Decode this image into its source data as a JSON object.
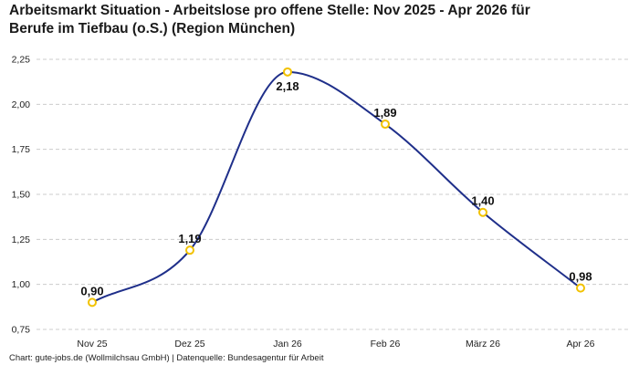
{
  "title_line1": "Arbeitsmarkt Situation - Arbeitslose pro offene Stelle: Nov 2025 - Apr 2026 für",
  "title_line2": "Berufe im Tiefbau (o.S.) (Region München)",
  "source": "Chart: gute-jobs.de (Wollmilchsau GmbH) | Datenquelle: Bundesagentur für Arbeit",
  "colors": {
    "line": "#1f2f8a",
    "marker": "#f2c200",
    "grid": "#cccccc"
  },
  "chart_data": {
    "type": "line",
    "categories": [
      "Nov 25",
      "Dez 25",
      "Jan 26",
      "Feb 26",
      "März 26",
      "Apr 26"
    ],
    "values": [
      0.9,
      1.19,
      2.18,
      1.89,
      1.4,
      0.98
    ],
    "data_labels": [
      "0,90",
      "1,19",
      "2,18",
      "1,89",
      "1,40",
      "0,98"
    ],
    "label_position": [
      "above",
      "above",
      "below",
      "above",
      "above",
      "above"
    ],
    "y_ticks": [
      0.75,
      1.0,
      1.25,
      1.5,
      1.75,
      2.0,
      2.25
    ],
    "y_tick_labels": [
      "0,75",
      "1,00",
      "1,25",
      "1,50",
      "1,75",
      "2,00",
      "2,25"
    ],
    "ylim": [
      0.75,
      2.25
    ],
    "grid": true,
    "smooth": true,
    "legend": "none"
  }
}
